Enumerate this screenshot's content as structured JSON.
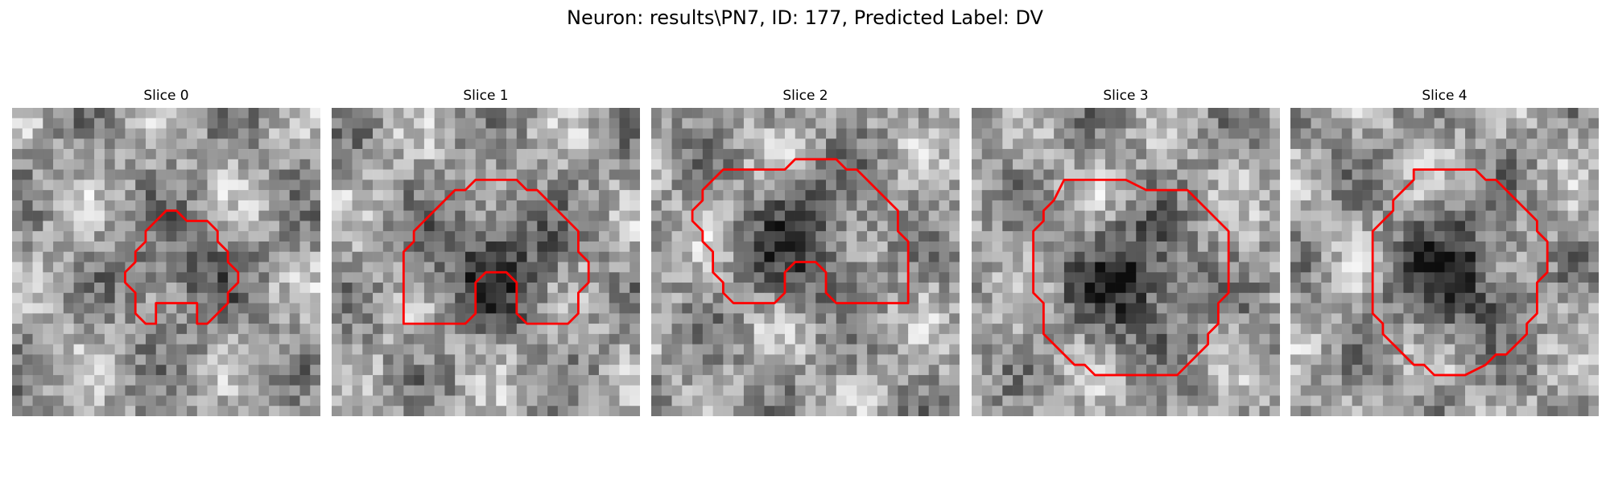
{
  "figure": {
    "suptitle": "Neuron: results\\PN7, ID: 177, Predicted Label: DV"
  },
  "colors": {
    "contour": "#ff0000",
    "background": "#ffffff"
  },
  "panels": [
    {
      "title": "Slice 0",
      "seed": 11,
      "darkness": 0.35,
      "contour": [
        [
          15,
          10
        ],
        [
          16,
          10
        ],
        [
          17,
          11
        ],
        [
          18,
          11
        ],
        [
          19,
          11
        ],
        [
          20,
          12
        ],
        [
          20,
          13
        ],
        [
          21,
          14
        ],
        [
          21,
          15
        ],
        [
          22,
          16
        ],
        [
          22,
          17
        ],
        [
          21,
          18
        ],
        [
          21,
          19
        ],
        [
          20,
          20
        ],
        [
          19,
          21
        ],
        [
          18,
          21
        ],
        [
          18,
          20
        ],
        [
          18,
          19
        ],
        [
          17,
          19
        ],
        [
          16,
          19
        ],
        [
          15,
          19
        ],
        [
          14,
          19
        ],
        [
          14,
          20
        ],
        [
          14,
          21
        ],
        [
          13,
          21
        ],
        [
          12,
          20
        ],
        [
          12,
          19
        ],
        [
          12,
          18
        ],
        [
          11,
          17
        ],
        [
          11,
          16
        ],
        [
          12,
          15
        ],
        [
          12,
          14
        ],
        [
          13,
          13
        ],
        [
          13,
          12
        ],
        [
          14,
          11
        ]
      ]
    },
    {
      "title": "Slice 1",
      "seed": 23,
      "darkness": 0.55,
      "contour": [
        [
          14,
          7
        ],
        [
          18,
          7
        ],
        [
          19,
          8
        ],
        [
          20,
          8
        ],
        [
          21,
          9
        ],
        [
          22,
          10
        ],
        [
          23,
          11
        ],
        [
          24,
          12
        ],
        [
          24,
          13
        ],
        [
          24,
          14
        ],
        [
          25,
          15
        ],
        [
          25,
          16
        ],
        [
          25,
          17
        ],
        [
          24,
          18
        ],
        [
          24,
          19
        ],
        [
          24,
          20
        ],
        [
          23,
          21
        ],
        [
          22,
          21
        ],
        [
          20,
          21
        ],
        [
          19,
          21
        ],
        [
          18,
          20
        ],
        [
          18,
          19
        ],
        [
          18,
          18
        ],
        [
          18,
          17
        ],
        [
          17,
          16
        ],
        [
          15,
          16
        ],
        [
          14,
          17
        ],
        [
          14,
          18
        ],
        [
          14,
          19
        ],
        [
          14,
          20
        ],
        [
          13,
          21
        ],
        [
          12,
          21
        ],
        [
          10,
          21
        ],
        [
          7,
          21
        ],
        [
          7,
          20
        ],
        [
          7,
          19
        ],
        [
          7,
          18
        ],
        [
          7,
          17
        ],
        [
          7,
          16
        ],
        [
          7,
          15
        ],
        [
          7,
          14
        ],
        [
          8,
          13
        ],
        [
          8,
          12
        ],
        [
          9,
          11
        ],
        [
          10,
          10
        ],
        [
          11,
          9
        ],
        [
          12,
          8
        ],
        [
          13,
          8
        ]
      ]
    },
    {
      "title": "Slice 2",
      "seed": 37,
      "darkness": 0.5,
      "contour": [
        [
          14,
          5
        ],
        [
          18,
          5
        ],
        [
          19,
          6
        ],
        [
          20,
          6
        ],
        [
          21,
          7
        ],
        [
          22,
          8
        ],
        [
          23,
          9
        ],
        [
          24,
          10
        ],
        [
          24,
          11
        ],
        [
          24,
          12
        ],
        [
          25,
          13
        ],
        [
          25,
          14
        ],
        [
          25,
          15
        ],
        [
          25,
          16
        ],
        [
          25,
          17
        ],
        [
          25,
          18
        ],
        [
          25,
          19
        ],
        [
          24,
          19
        ],
        [
          21,
          19
        ],
        [
          18,
          19
        ],
        [
          17,
          18
        ],
        [
          17,
          17
        ],
        [
          17,
          16
        ],
        [
          16,
          15
        ],
        [
          14,
          15
        ],
        [
          13,
          16
        ],
        [
          13,
          17
        ],
        [
          13,
          18
        ],
        [
          12,
          19
        ],
        [
          10,
          19
        ],
        [
          8,
          19
        ],
        [
          7,
          18
        ],
        [
          7,
          17
        ],
        [
          6,
          16
        ],
        [
          6,
          15
        ],
        [
          6,
          14
        ],
        [
          5,
          13
        ],
        [
          5,
          12
        ],
        [
          4,
          11
        ],
        [
          4,
          10
        ],
        [
          5,
          9
        ],
        [
          5,
          8
        ],
        [
          6,
          7
        ],
        [
          7,
          6
        ],
        [
          8,
          6
        ],
        [
          10,
          6
        ],
        [
          12,
          6
        ],
        [
          13,
          6
        ]
      ]
    },
    {
      "title": "Slice 3",
      "seed": 53,
      "darkness": 0.6,
      "contour": [
        [
          9,
          7
        ],
        [
          12,
          7
        ],
        [
          15,
          7
        ],
        [
          17,
          8
        ],
        [
          18,
          8
        ],
        [
          20,
          8
        ],
        [
          21,
          8
        ],
        [
          22,
          9
        ],
        [
          23,
          10
        ],
        [
          24,
          11
        ],
        [
          25,
          12
        ],
        [
          25,
          14
        ],
        [
          25,
          16
        ],
        [
          25,
          18
        ],
        [
          24,
          19
        ],
        [
          24,
          20
        ],
        [
          24,
          21
        ],
        [
          23,
          22
        ],
        [
          23,
          23
        ],
        [
          22,
          24
        ],
        [
          21,
          25
        ],
        [
          20,
          26
        ],
        [
          19,
          26
        ],
        [
          18,
          26
        ],
        [
          13,
          26
        ],
        [
          12,
          26
        ],
        [
          11,
          25
        ],
        [
          10,
          25
        ],
        [
          9,
          24
        ],
        [
          8,
          23
        ],
        [
          7,
          22
        ],
        [
          7,
          21
        ],
        [
          7,
          19
        ],
        [
          6,
          18
        ],
        [
          6,
          16
        ],
        [
          6,
          14
        ],
        [
          6,
          12
        ],
        [
          7,
          11
        ],
        [
          7,
          10
        ],
        [
          8,
          9
        ]
      ]
    },
    {
      "title": "Slice 4",
      "seed": 71,
      "darkness": 0.6,
      "contour": [
        [
          12,
          6
        ],
        [
          17,
          6
        ],
        [
          18,
          6
        ],
        [
          19,
          7
        ],
        [
          20,
          7
        ],
        [
          21,
          8
        ],
        [
          22,
          9
        ],
        [
          23,
          10
        ],
        [
          24,
          11
        ],
        [
          24,
          12
        ],
        [
          25,
          13
        ],
        [
          25,
          14
        ],
        [
          25,
          15
        ],
        [
          25,
          16
        ],
        [
          24,
          17
        ],
        [
          24,
          18
        ],
        [
          24,
          19
        ],
        [
          24,
          20
        ],
        [
          23,
          21
        ],
        [
          23,
          22
        ],
        [
          22,
          23
        ],
        [
          21,
          24
        ],
        [
          20,
          24
        ],
        [
          19,
          25
        ],
        [
          17,
          26
        ],
        [
          15,
          26
        ],
        [
          14,
          26
        ],
        [
          13,
          25
        ],
        [
          12,
          25
        ],
        [
          11,
          24
        ],
        [
          10,
          23
        ],
        [
          9,
          22
        ],
        [
          9,
          21
        ],
        [
          8,
          20
        ],
        [
          8,
          19
        ],
        [
          8,
          18
        ],
        [
          8,
          17
        ],
        [
          8,
          16
        ],
        [
          8,
          15
        ],
        [
          8,
          14
        ],
        [
          8,
          13
        ],
        [
          8,
          12
        ],
        [
          9,
          11
        ],
        [
          10,
          10
        ],
        [
          10,
          9
        ],
        [
          11,
          8
        ],
        [
          12,
          7
        ]
      ]
    }
  ]
}
